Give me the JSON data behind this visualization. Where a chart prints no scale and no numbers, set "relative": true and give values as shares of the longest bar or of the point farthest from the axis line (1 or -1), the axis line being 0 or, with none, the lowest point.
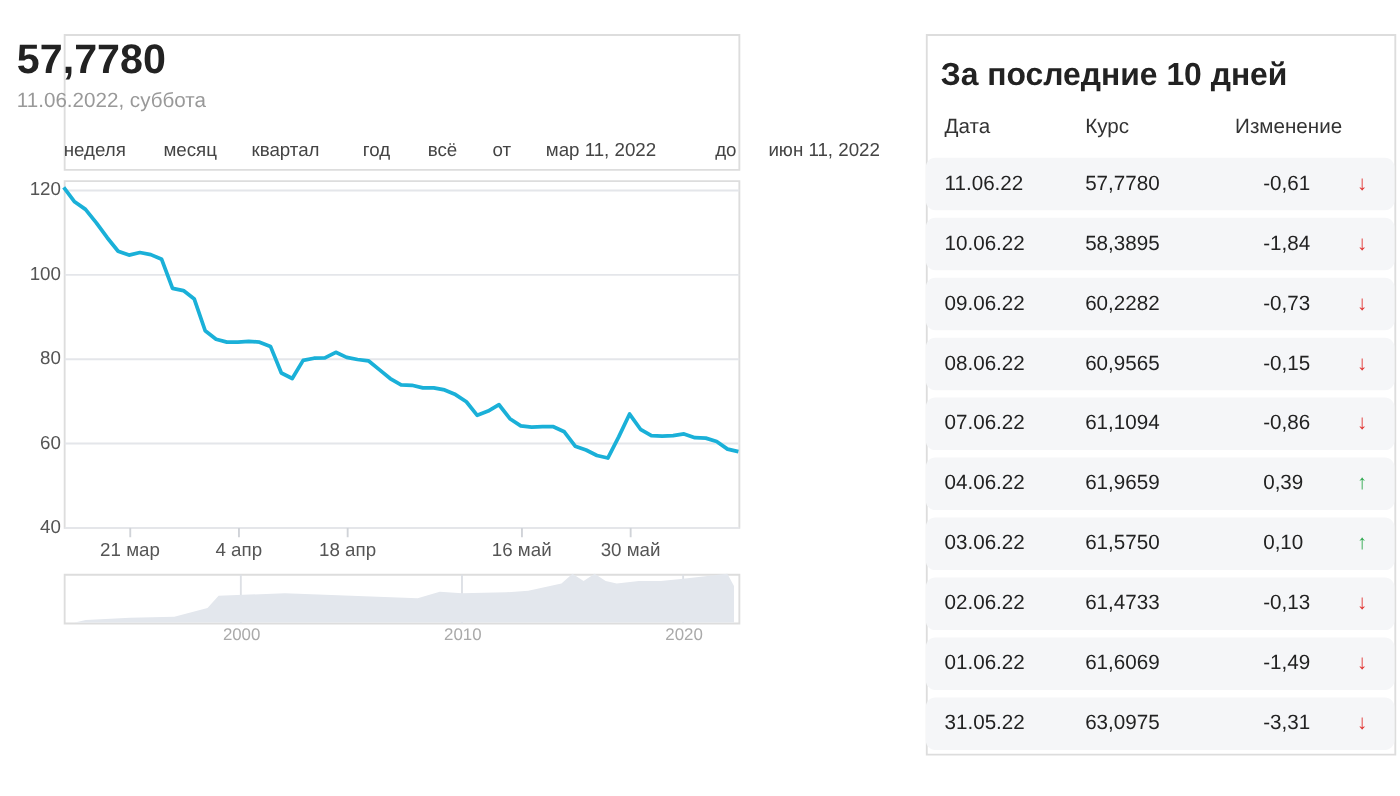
{
  "chart_data": [
    {
      "type": "line",
      "title": "57,7780",
      "subtitle": "11.06.2022, суббота",
      "annotations": [
        "неделя",
        "месяц",
        "квартал",
        "год",
        "всё",
        "от",
        "мар 11, 2022",
        "до",
        "июн 11, 2022"
      ],
      "categories": [
        null,
        null,
        null,
        null,
        null,
        null,
        "21 мар",
        null,
        null,
        null,
        null,
        null,
        null,
        null,
        null,
        null,
        "4 апр",
        null,
        null,
        null,
        null,
        null,
        null,
        null,
        null,
        null,
        "18 апр",
        null,
        null,
        null,
        null,
        null,
        null,
        null,
        null,
        null,
        null,
        null,
        null,
        null,
        null,
        null,
        "16 май",
        null,
        null,
        null,
        null,
        null,
        null,
        null,
        null,
        null,
        "30 май",
        null,
        null,
        null,
        null,
        null,
        null,
        null,
        null,
        null,
        null
      ],
      "series": [
        {
          "color": "#1ab0d8",
          "values": [
            120.3,
            116.9,
            115.1,
            111.9,
            108.4,
            105.2,
            104.3,
            104.9,
            104.4,
            103.3,
            96.4,
            95.9,
            93.9,
            86.4,
            84.4,
            83.7,
            83.7,
            83.9,
            83.7,
            82.7,
            76.4,
            75.1,
            79.4,
            79.9,
            80.0,
            81.3,
            80.1,
            79.6,
            79.3,
            77.2,
            75.1,
            73.6,
            73.5,
            72.9,
            72.9,
            72.4,
            71.3,
            69.6,
            66.4,
            67.4,
            68.9,
            65.6,
            63.9,
            63.6,
            63.7,
            63.7,
            62.5,
            59.1,
            58.2,
            56.9,
            56.3,
            61.3,
            66.7,
            63.1,
            61.6,
            61.5,
            61.6,
            62.0,
            61.1,
            61.0,
            60.2,
            58.4,
            57.8
          ]
        }
      ],
      "ylim": [
        40,
        122
      ],
      "yticks": [
        40,
        60,
        80,
        100,
        120
      ],
      "grid": "y",
      "line_style": "solid",
      "marker": "none"
    },
    {
      "type": "area",
      "relative": true,
      "x": [
        1992.5,
        1993,
        1995,
        1997,
        1998.5,
        1999,
        2002,
        2005,
        2008,
        2009,
        2010,
        2012,
        2013,
        2014.5,
        2015,
        2015.5,
        2016,
        2016.5,
        2017,
        2018,
        2019,
        2020,
        2021,
        2022,
        2022.3
      ],
      "series": [
        {
          "color": "#e3e7ed",
          "values": [
            0,
            0.05,
            0.1,
            0.12,
            0.3,
            0.55,
            0.6,
            0.55,
            0.5,
            0.63,
            0.6,
            0.62,
            0.65,
            0.8,
            1.0,
            0.85,
            1.0,
            0.85,
            0.8,
            0.85,
            0.85,
            0.9,
            0.95,
            1.0,
            0.75
          ]
        }
      ],
      "xlim": [
        1992,
        2022.5
      ],
      "xticks": [
        2000,
        2010,
        2020
      ],
      "grid": "x",
      "tick_labels": "x"
    },
    {
      "type": "other",
      "title": "За последние 10 дней",
      "categories": [
        "Дата",
        "Курс",
        "Изменение",
        null
      ],
      "cell_labels": [
        [
          "11.06.22",
          "57,7780",
          "-0,61",
          "↓"
        ],
        [
          "10.06.22",
          "58,3895",
          "-1,84",
          "↓"
        ],
        [
          "09.06.22",
          "60,2282",
          "-0,73",
          "↓"
        ],
        [
          "08.06.22",
          "60,9565",
          "-0,15",
          "↓"
        ],
        [
          "07.06.22",
          "61,1094",
          "-0,86",
          "↓"
        ],
        [
          "04.06.22",
          "61,9659",
          "0,39",
          "↑"
        ],
        [
          "03.06.22",
          "61,5750",
          "0,10",
          "↑"
        ],
        [
          "02.06.22",
          "61,4733",
          "-0,13",
          "↓"
        ],
        [
          "01.06.22",
          "61,6069",
          "-1,49",
          "↓"
        ],
        [
          "31.05.22",
          "63,0975",
          "-3,31",
          "↓"
        ]
      ],
      "colors": [
        "#e0312e",
        "#e0312e",
        "#e0312e",
        "#e0312e",
        "#e0312e",
        "#2fa84f",
        "#2fa84f",
        "#e0312e",
        "#e0312e",
        "#e0312e"
      ]
    }
  ]
}
